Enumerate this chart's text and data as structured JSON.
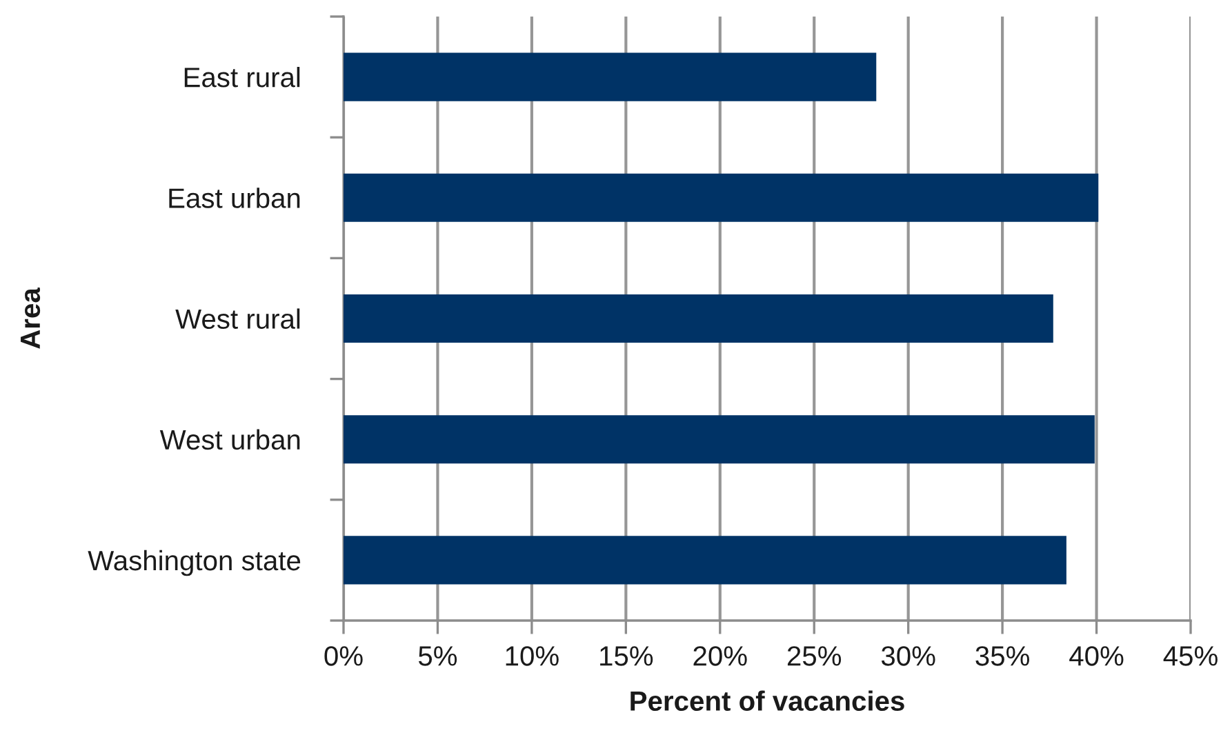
{
  "chart_data": {
    "type": "bar",
    "orientation": "horizontal",
    "categories": [
      "East rural",
      "East urban",
      "West rural",
      "West urban",
      "Washington state"
    ],
    "values": [
      28.3,
      40.1,
      37.7,
      39.9,
      38.4
    ],
    "color": "#003366",
    "xlabel": "Percent of vacancies",
    "ylabel": "Area",
    "xlim": [
      0,
      45
    ],
    "xticks": [
      {
        "value": 0,
        "label": "0%"
      },
      {
        "value": 5,
        "label": "5%"
      },
      {
        "value": 10,
        "label": "10%"
      },
      {
        "value": 15,
        "label": "15%"
      },
      {
        "value": 20,
        "label": "20%"
      },
      {
        "value": 25,
        "label": "25%"
      },
      {
        "value": 30,
        "label": "30%"
      },
      {
        "value": 35,
        "label": "35%"
      },
      {
        "value": 40,
        "label": "40%"
      },
      {
        "value": 45,
        "label": "45%"
      }
    ],
    "grid": "x",
    "legend": false
  }
}
